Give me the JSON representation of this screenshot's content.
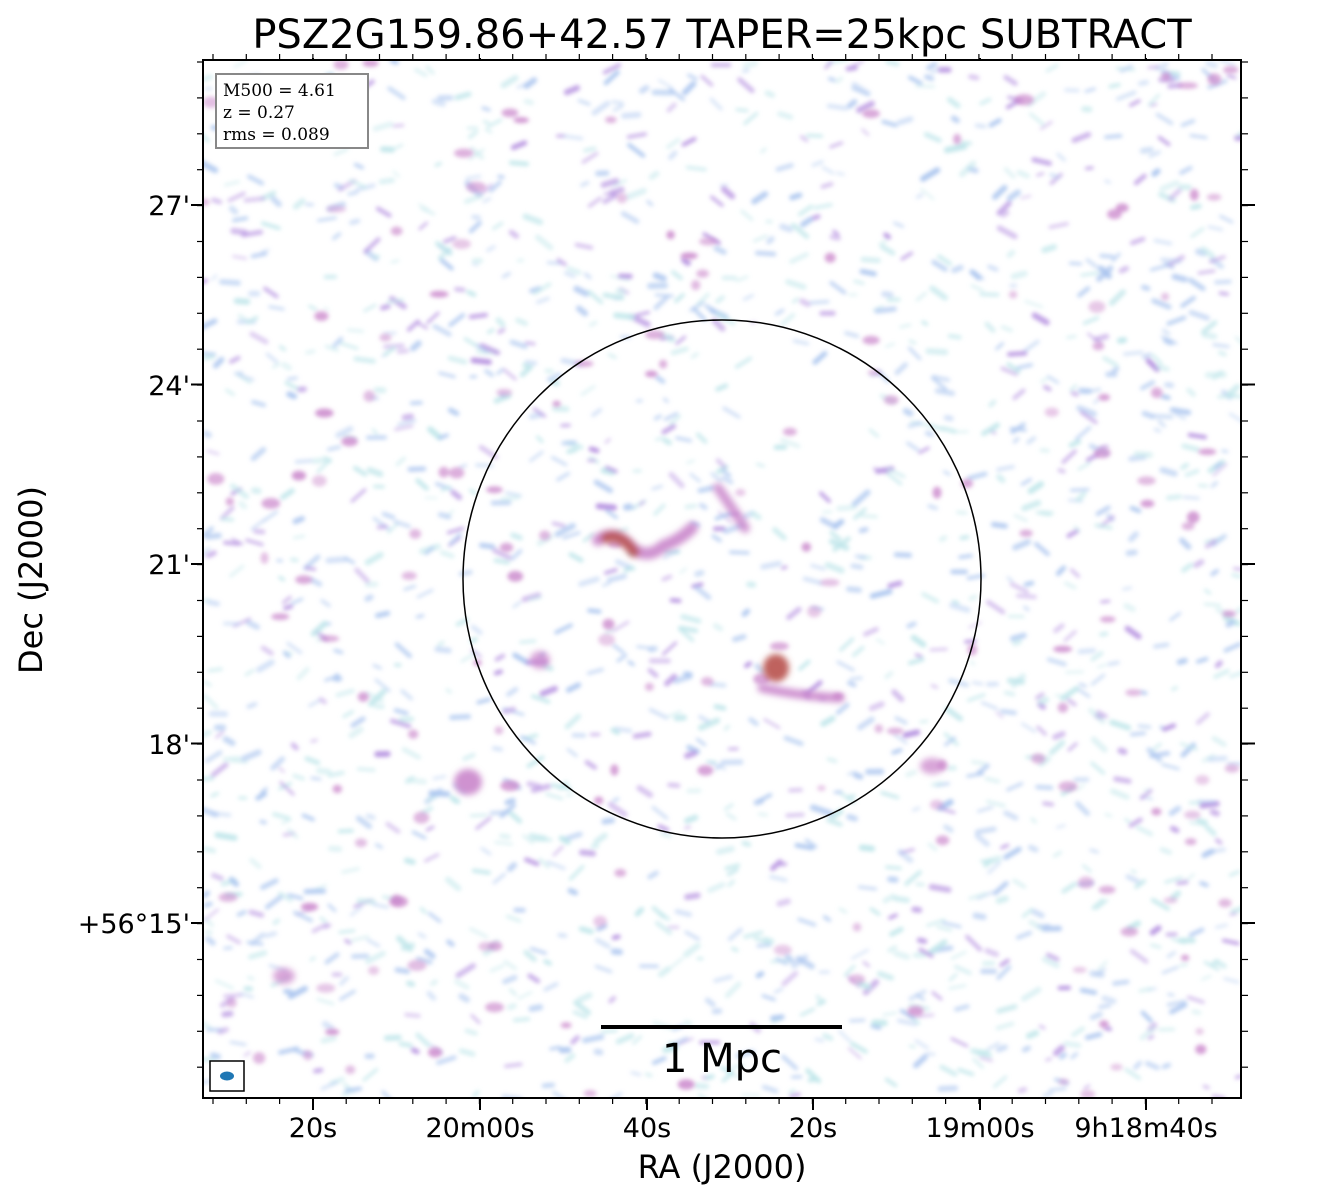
{
  "title": "PSZ2G159.86+42.57 TAPER=25kpc SUBTRACT",
  "axes": {
    "xlabel": "RA (J2000)",
    "ylabel": "Dec (J2000)",
    "x_ticks": [
      "20s",
      "20m00s",
      "40s",
      "20s",
      "19m00s",
      "9h18m40s"
    ],
    "y_ticks": [
      "27'",
      "24'",
      "21'",
      "18'",
      "+56°15'"
    ]
  },
  "info_box": {
    "line1": "M500 = 4.61",
    "line2": "z = 0.27",
    "line3": "rms = 0.089"
  },
  "scalebar": {
    "label": "1 Mpc"
  },
  "colors": {
    "noise_light": "#bfe6ea",
    "noise_blue": "#a9c4ef",
    "noise_purple": "#b48fe0",
    "emission_magenta": "#c77fc8",
    "emission_red": "#b8524e",
    "beam": "#1f77b4"
  }
}
